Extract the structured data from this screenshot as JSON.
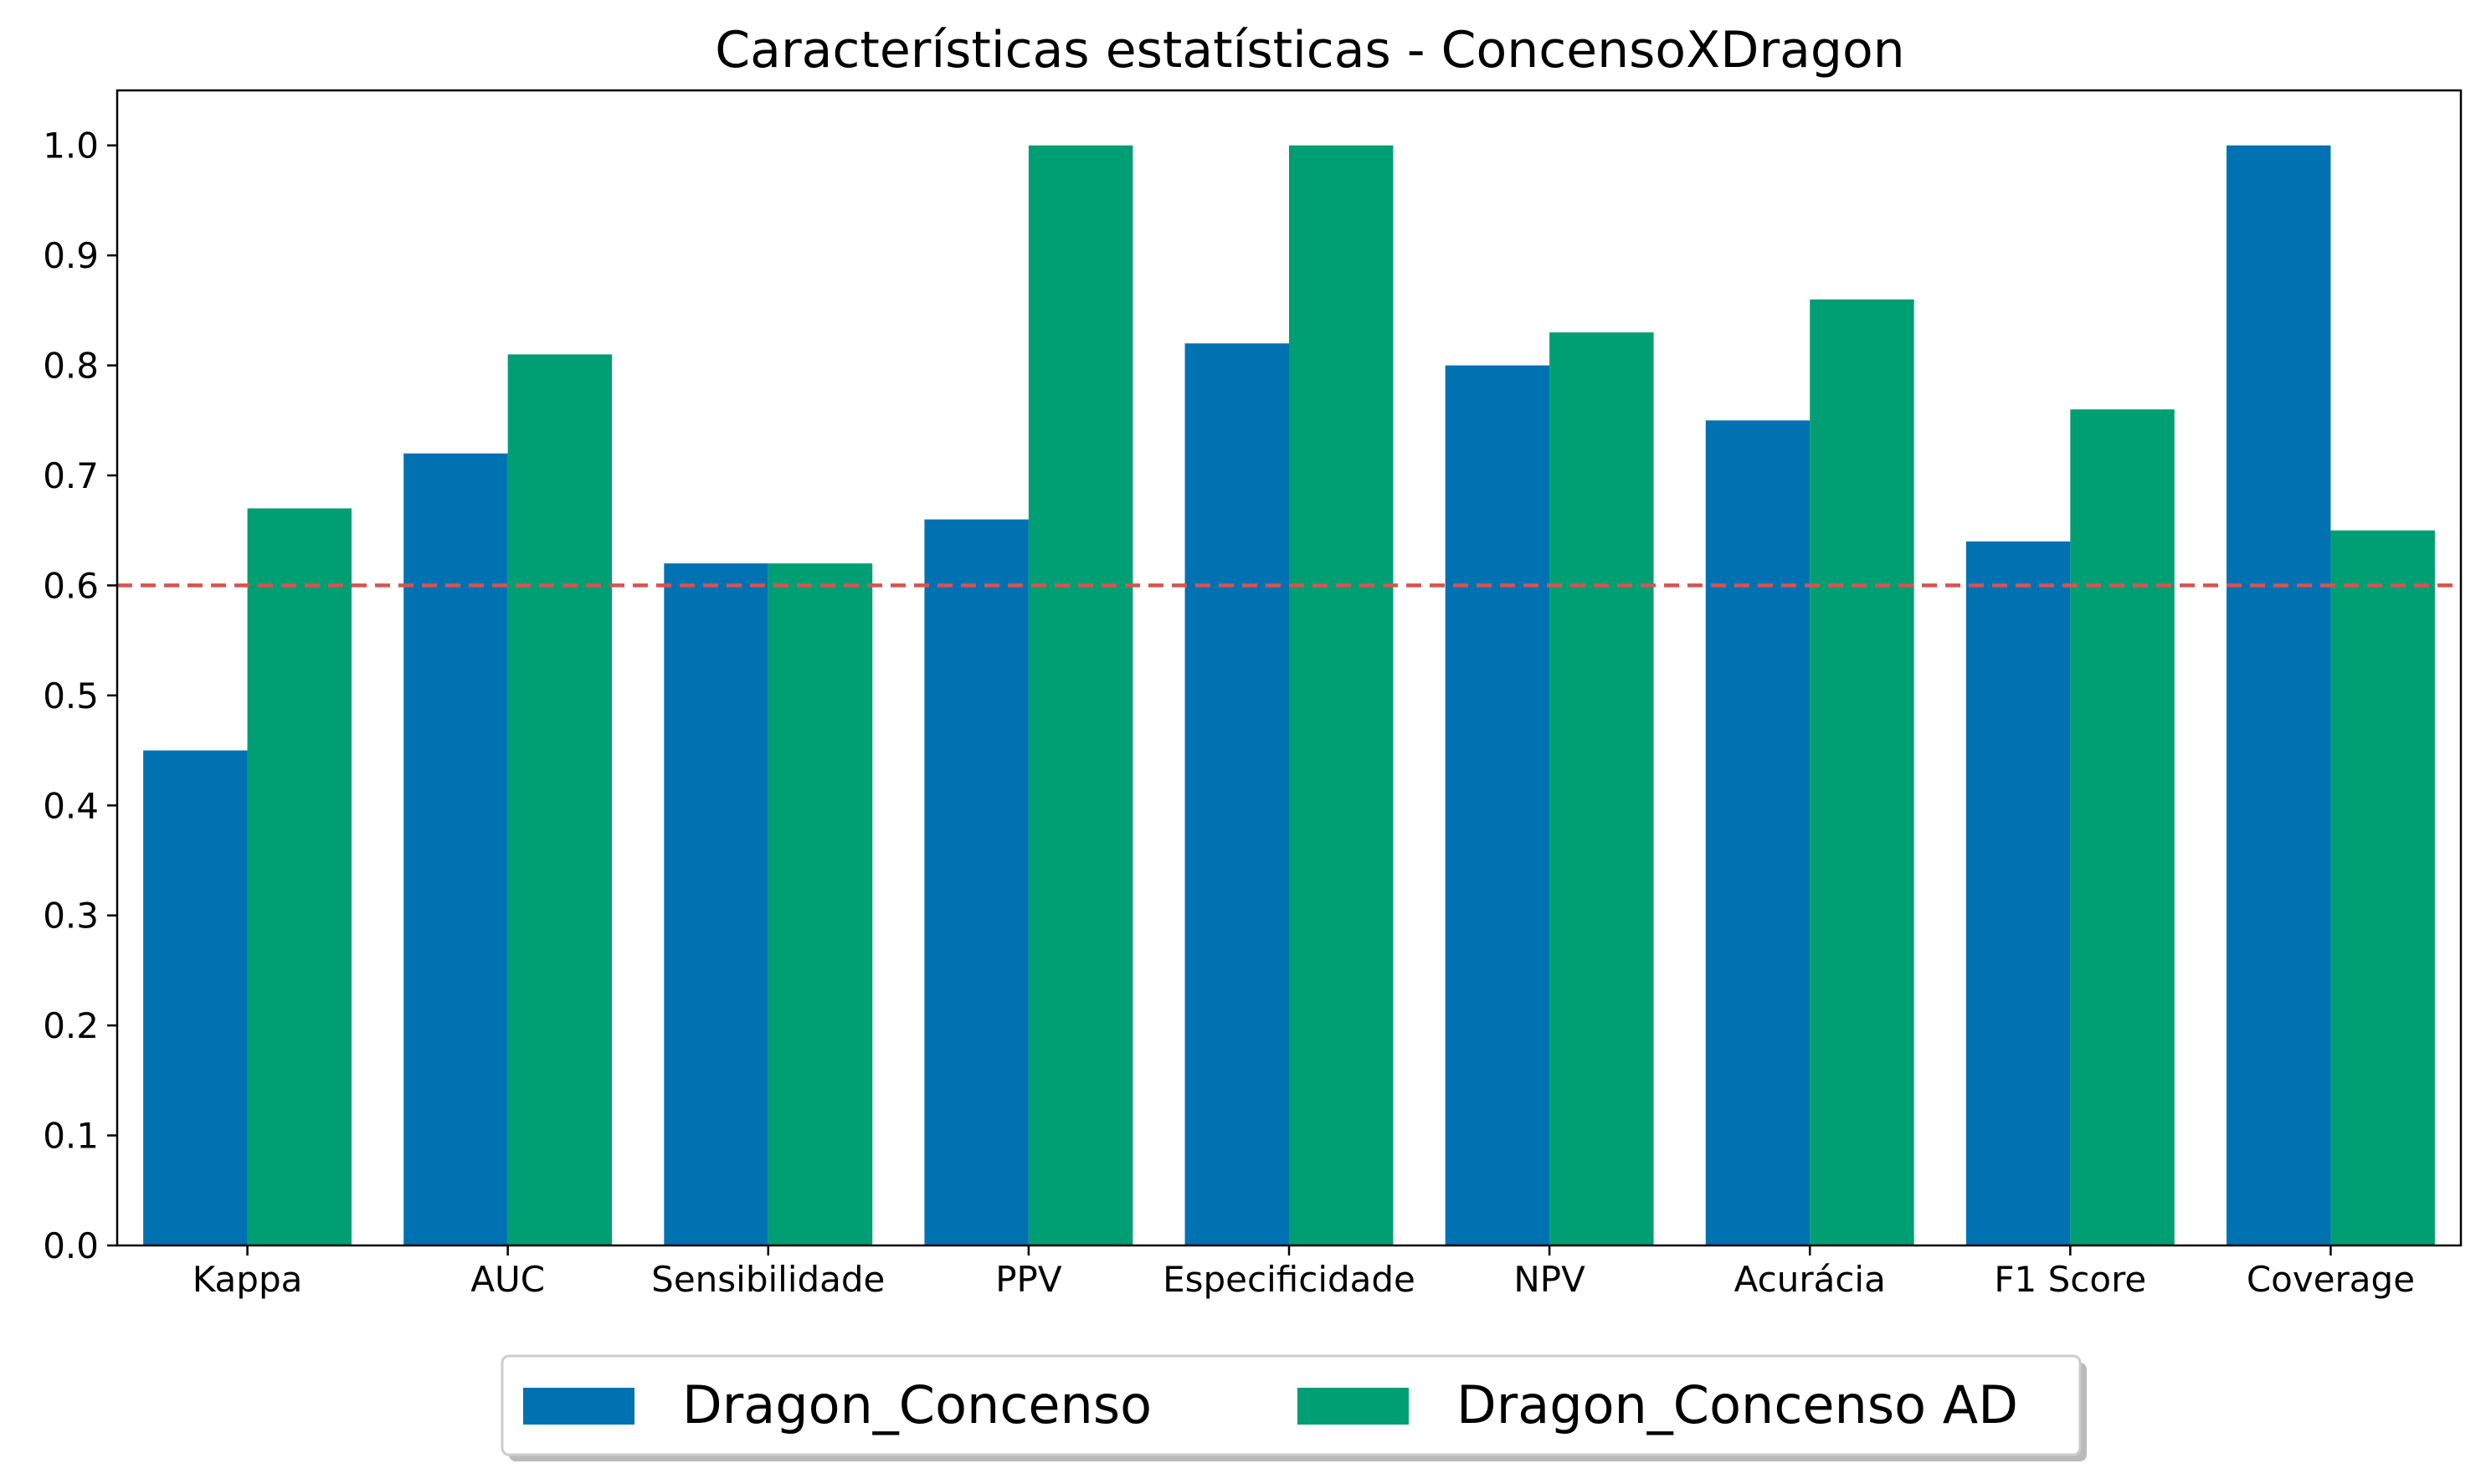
{
  "chart_data": {
    "type": "bar",
    "title": "Características estatísticas - ConcensoXDragon",
    "xlabel": "",
    "ylabel": "",
    "categories": [
      "Kappa",
      "AUC",
      "Sensibilidade",
      "PPV",
      "Especificidade",
      "NPV",
      "Acurácia",
      "F1 Score",
      "Coverage"
    ],
    "series": [
      {
        "name": "Dragon_Concenso",
        "color": "#0072b2",
        "values": [
          0.45,
          0.72,
          0.62,
          0.66,
          0.82,
          0.8,
          0.75,
          0.64,
          1.0
        ]
      },
      {
        "name": "Dragon_Concenso AD",
        "color": "#009e73",
        "values": [
          0.67,
          0.81,
          0.62,
          1.0,
          1.0,
          0.83,
          0.86,
          0.76,
          0.65
        ]
      }
    ],
    "ylim": [
      0.0,
      1.05
    ],
    "yticks": [
      "0.0",
      "0.1",
      "0.2",
      "0.3",
      "0.4",
      "0.5",
      "0.6",
      "0.7",
      "0.8",
      "0.9",
      "1.0"
    ],
    "reference_line": {
      "y": 0.6,
      "style": "dashed",
      "color": "#d9534f"
    },
    "grid": false,
    "legend_placement": "bottom-center"
  }
}
